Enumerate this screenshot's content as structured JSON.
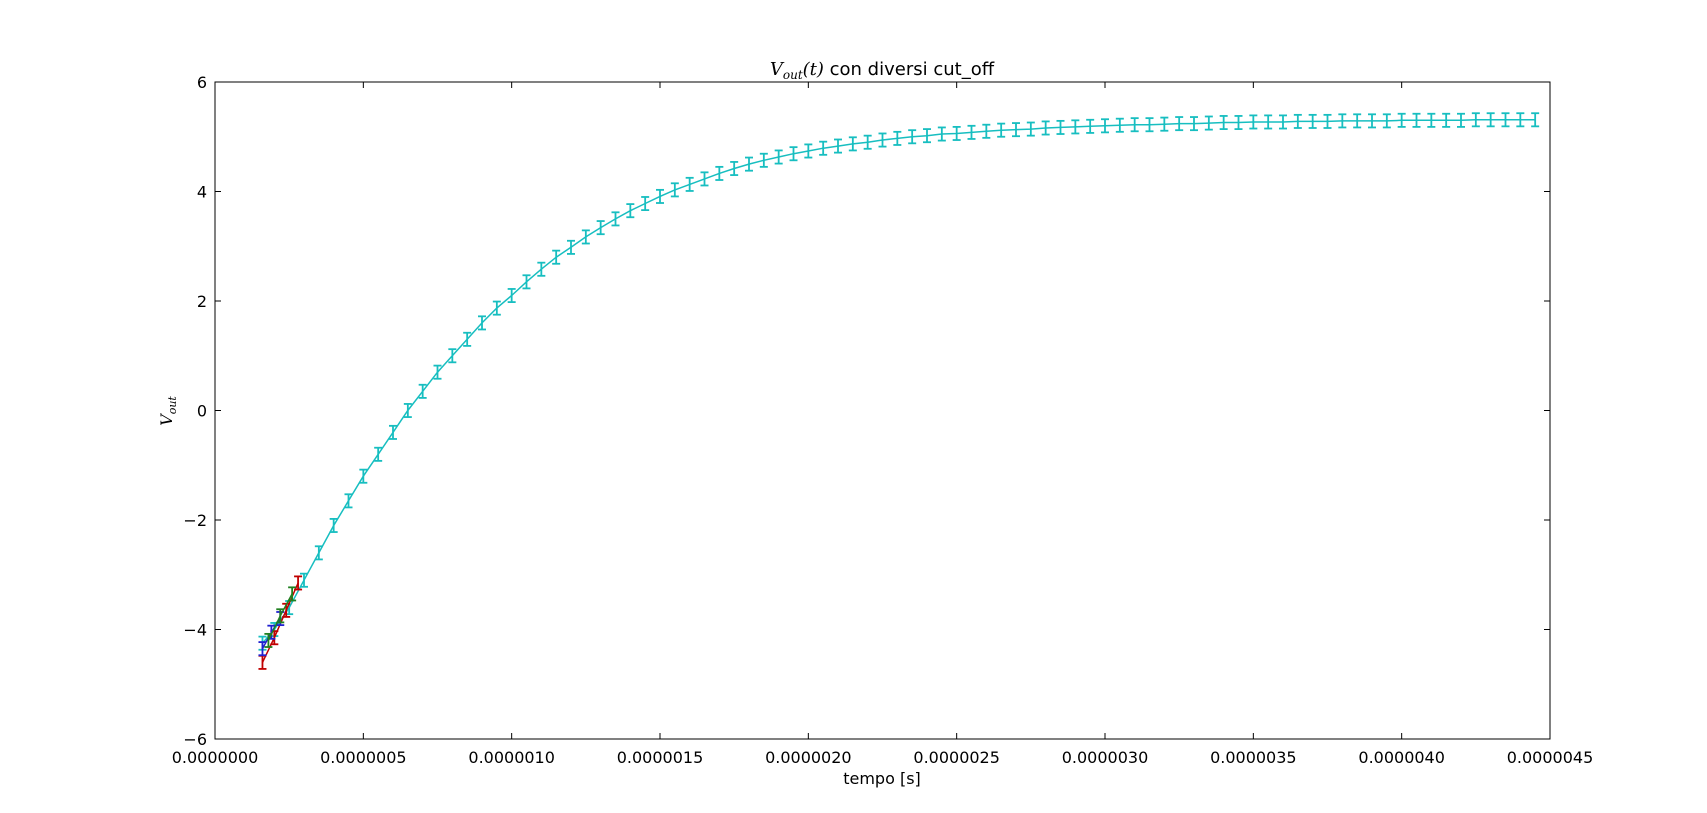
{
  "chart_data": {
    "type": "scatter",
    "title": {
      "math_var": "V",
      "math_sub": "out",
      "math_arg": "(t)",
      "text": " con diversi cut_off"
    },
    "xlabel": "tempo [s]",
    "ylabel": {
      "var": "V",
      "sub": "out"
    },
    "xlim": [
      0.0,
      4.5e-06
    ],
    "ylim": [
      -6,
      6
    ],
    "xticks": [
      0.0,
      5e-07,
      1e-06,
      1.5e-06,
      2e-06,
      2.5e-06,
      3e-06,
      3.5e-06,
      4e-06,
      4.5e-06
    ],
    "xtick_labels": [
      "0.0000000",
      "0.0000005",
      "0.0000010",
      "0.0000015",
      "0.0000020",
      "0.0000025",
      "0.0000030",
      "0.0000035",
      "0.0000040",
      "0.0000045"
    ],
    "yticks": [
      -6,
      -4,
      -2,
      0,
      2,
      4,
      6
    ],
    "ytick_labels": [
      "−6",
      "−4",
      "−2",
      "0",
      "2",
      "4",
      "6"
    ],
    "grid": false,
    "error_y": 0.12,
    "series": [
      {
        "color": "#17bec0",
        "x": [
          1.6e-07,
          2e-07,
          2.5e-07,
          3e-07,
          3.5e-07,
          4e-07,
          4.5e-07,
          5e-07,
          5.5e-07,
          6e-07,
          6.5e-07,
          7e-07,
          7.5e-07,
          8e-07,
          8.5e-07,
          9e-07,
          9.5e-07,
          1e-06,
          1.05e-06,
          1.1e-06,
          1.15e-06,
          1.2e-06,
          1.25e-06,
          1.3e-06,
          1.35e-06,
          1.4e-06,
          1.45e-06,
          1.5e-06,
          1.55e-06,
          1.6e-06,
          1.65e-06,
          1.7e-06,
          1.75e-06,
          1.8e-06,
          1.85e-06,
          1.9e-06,
          1.95e-06,
          2e-06,
          2.05e-06,
          2.1e-06,
          2.15e-06,
          2.2e-06,
          2.25e-06,
          2.3e-06,
          2.35e-06,
          2.4e-06,
          2.45e-06,
          2.5e-06,
          2.55e-06,
          2.6e-06,
          2.65e-06,
          2.7e-06,
          2.75e-06,
          2.8e-06,
          2.85e-06,
          2.9e-06,
          2.95e-06,
          3e-06,
          3.05e-06,
          3.1e-06,
          3.15e-06,
          3.2e-06,
          3.25e-06,
          3.3e-06,
          3.35e-06,
          3.4e-06,
          3.45e-06,
          3.5e-06,
          3.55e-06,
          3.6e-06,
          3.65e-06,
          3.7e-06,
          3.75e-06,
          3.8e-06,
          3.85e-06,
          3.9e-06,
          3.95e-06,
          4e-06,
          4.05e-06,
          4.1e-06,
          4.15e-06,
          4.2e-06,
          4.25e-06,
          4.3e-06,
          4.35e-06,
          4.4e-06,
          4.45e-06
        ],
        "y": [
          -4.25,
          -4.0,
          -3.6,
          -3.1,
          -2.6,
          -2.1,
          -1.65,
          -1.2,
          -0.8,
          -0.4,
          0.0,
          0.35,
          0.7,
          1.0,
          1.3,
          1.6,
          1.87,
          2.1,
          2.35,
          2.58,
          2.8,
          2.98,
          3.17,
          3.34,
          3.5,
          3.65,
          3.78,
          3.91,
          4.03,
          4.13,
          4.23,
          4.33,
          4.42,
          4.5,
          4.57,
          4.63,
          4.69,
          4.74,
          4.79,
          4.83,
          4.87,
          4.9,
          4.94,
          4.97,
          5.0,
          5.02,
          5.05,
          5.06,
          5.08,
          5.1,
          5.12,
          5.13,
          5.14,
          5.16,
          5.17,
          5.18,
          5.19,
          5.2,
          5.21,
          5.22,
          5.22,
          5.23,
          5.24,
          5.24,
          5.25,
          5.26,
          5.26,
          5.27,
          5.27,
          5.27,
          5.28,
          5.28,
          5.28,
          5.29,
          5.29,
          5.29,
          5.29,
          5.3,
          5.3,
          5.3,
          5.3,
          5.3,
          5.31,
          5.31,
          5.31,
          5.31,
          5.31
        ]
      },
      {
        "color": "#c00000",
        "x": [
          1.6e-07,
          2e-07,
          2.4e-07,
          2.8e-07
        ],
        "y": [
          -4.6,
          -4.15,
          -3.65,
          -3.15
        ]
      },
      {
        "color": "#2020d0",
        "x": [
          1.6e-07,
          1.9e-07,
          2.2e-07
        ],
        "y": [
          -4.35,
          -4.05,
          -3.8
        ]
      },
      {
        "color": "#208020",
        "x": [
          1.8e-07,
          2.2e-07,
          2.6e-07
        ],
        "y": [
          -4.2,
          -3.75,
          -3.35
        ]
      }
    ]
  }
}
